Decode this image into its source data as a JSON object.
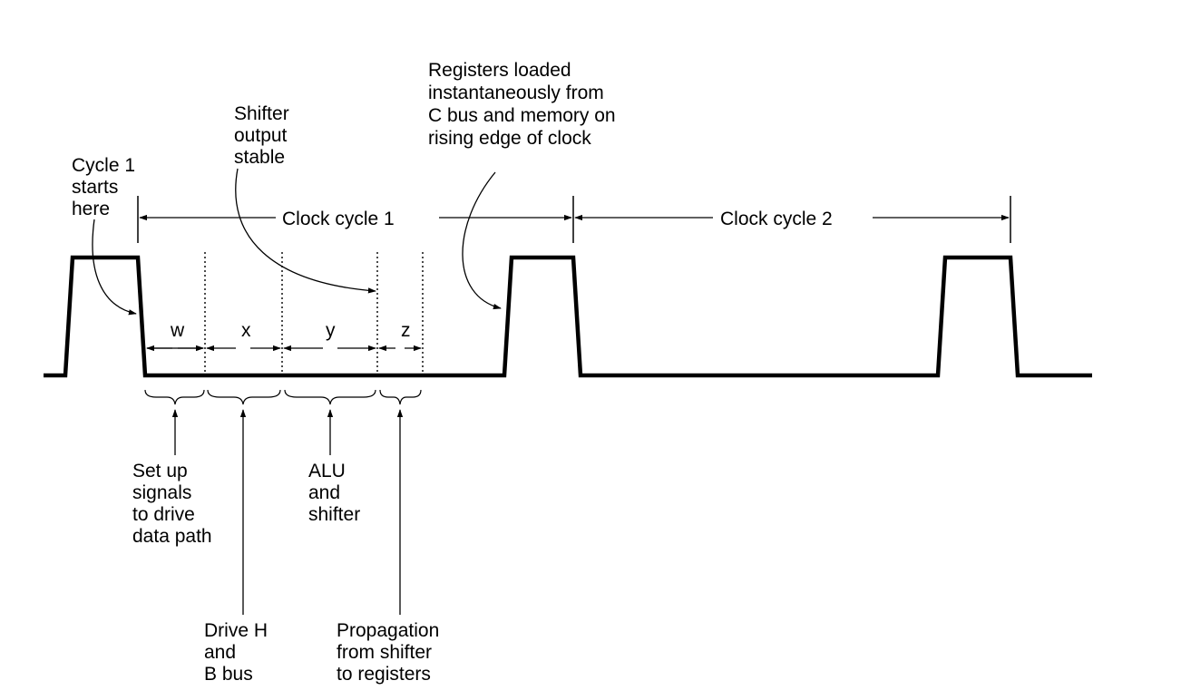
{
  "annotations": {
    "cycle_start": [
      "Cycle 1",
      "starts",
      "here"
    ],
    "shifter_stable": [
      "Shifter",
      "output",
      "stable"
    ],
    "registers_loaded": [
      "Registers loaded",
      "instantaneously from",
      "C bus and memory  on",
      "rising edge of clock"
    ]
  },
  "cycles": {
    "cycle1_label": "Clock cycle 1",
    "cycle2_label": "Clock cycle 2"
  },
  "subintervals": {
    "w": "w",
    "x": "x",
    "y": "y",
    "z": "z"
  },
  "phases": {
    "setup": [
      "Set up",
      "signals",
      "to drive",
      "data path"
    ],
    "drive_h": [
      "Drive H",
      "and",
      "B bus"
    ],
    "alu_shifter": [
      "ALU",
      "and",
      "shifter"
    ],
    "propagation": [
      "Propagation",
      "from shifter",
      "to registers"
    ]
  }
}
